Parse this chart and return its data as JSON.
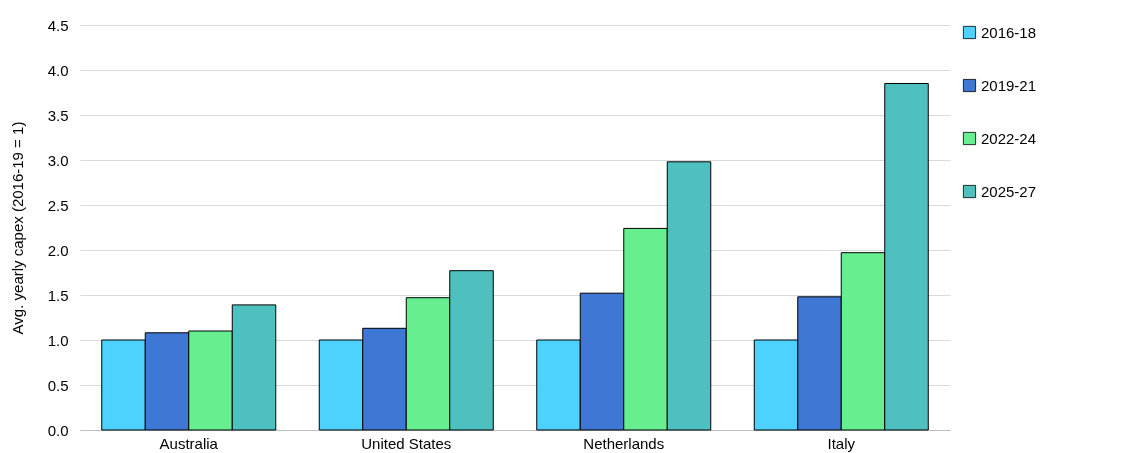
{
  "chart_data": {
    "type": "bar",
    "ylabel": "Avg. yearly capex (2016-19 = 1)",
    "categories": [
      "Australia",
      "United States",
      "Netherlands",
      "Italy"
    ],
    "series": [
      {
        "name": "2016-18",
        "color": "#4dd2ff",
        "values": [
          1.0,
          1.0,
          1.0,
          1.0
        ]
      },
      {
        "name": "2019-21",
        "color": "#3f77d4",
        "values": [
          1.08,
          1.13,
          1.52,
          1.48
        ]
      },
      {
        "name": "2022-24",
        "color": "#66ee8f",
        "values": [
          1.1,
          1.47,
          2.24,
          1.97
        ]
      },
      {
        "name": "2025-27",
        "color": "#4fc0c0",
        "values": [
          1.39,
          1.77,
          2.98,
          3.85
        ]
      }
    ],
    "ylim": [
      0,
      4.5
    ],
    "yticks": [
      {
        "value": 0,
        "label": "0.0"
      },
      {
        "value": 0.5,
        "label": "0.5"
      },
      {
        "value": 1,
        "label": "1.0"
      },
      {
        "value": 1.5,
        "label": "1.5"
      },
      {
        "value": 2,
        "label": "2.0"
      },
      {
        "value": 2.5,
        "label": "2.5"
      },
      {
        "value": 3,
        "label": "3.0"
      },
      {
        "value": 3.5,
        "label": "3.5"
      },
      {
        "value": 4,
        "label": "4.0"
      },
      {
        "value": 4.5,
        "label": "4.5"
      }
    ],
    "grid": "y",
    "legend": "right"
  }
}
